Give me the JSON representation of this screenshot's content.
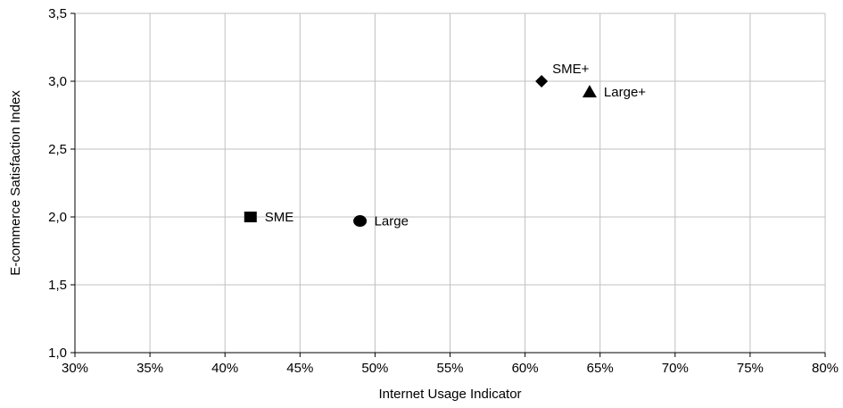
{
  "chart_data": {
    "type": "scatter",
    "title": "",
    "xlabel": "Internet Usage Indicator",
    "ylabel": "E-commerce Satisfaction Index",
    "xlim": [
      0.3,
      0.8
    ],
    "ylim": [
      1.0,
      3.5
    ],
    "x_ticks": [
      "30%",
      "35%",
      "40%",
      "45%",
      "50%",
      "55%",
      "60%",
      "65%",
      "70%",
      "75%",
      "80%"
    ],
    "y_ticks": [
      "1,0",
      "1,5",
      "2,0",
      "2,5",
      "3,0",
      "3,5"
    ],
    "grid": true,
    "legend": "none",
    "points": [
      {
        "label": "SME",
        "x": 0.417,
        "y": 2.0,
        "marker": "square"
      },
      {
        "label": "Large",
        "x": 0.49,
        "y": 1.97,
        "marker": "circle"
      },
      {
        "label": "SME+",
        "x": 0.611,
        "y": 3.0,
        "marker": "diamond"
      },
      {
        "label": "Large+",
        "x": 0.643,
        "y": 2.92,
        "marker": "triangle"
      }
    ]
  }
}
